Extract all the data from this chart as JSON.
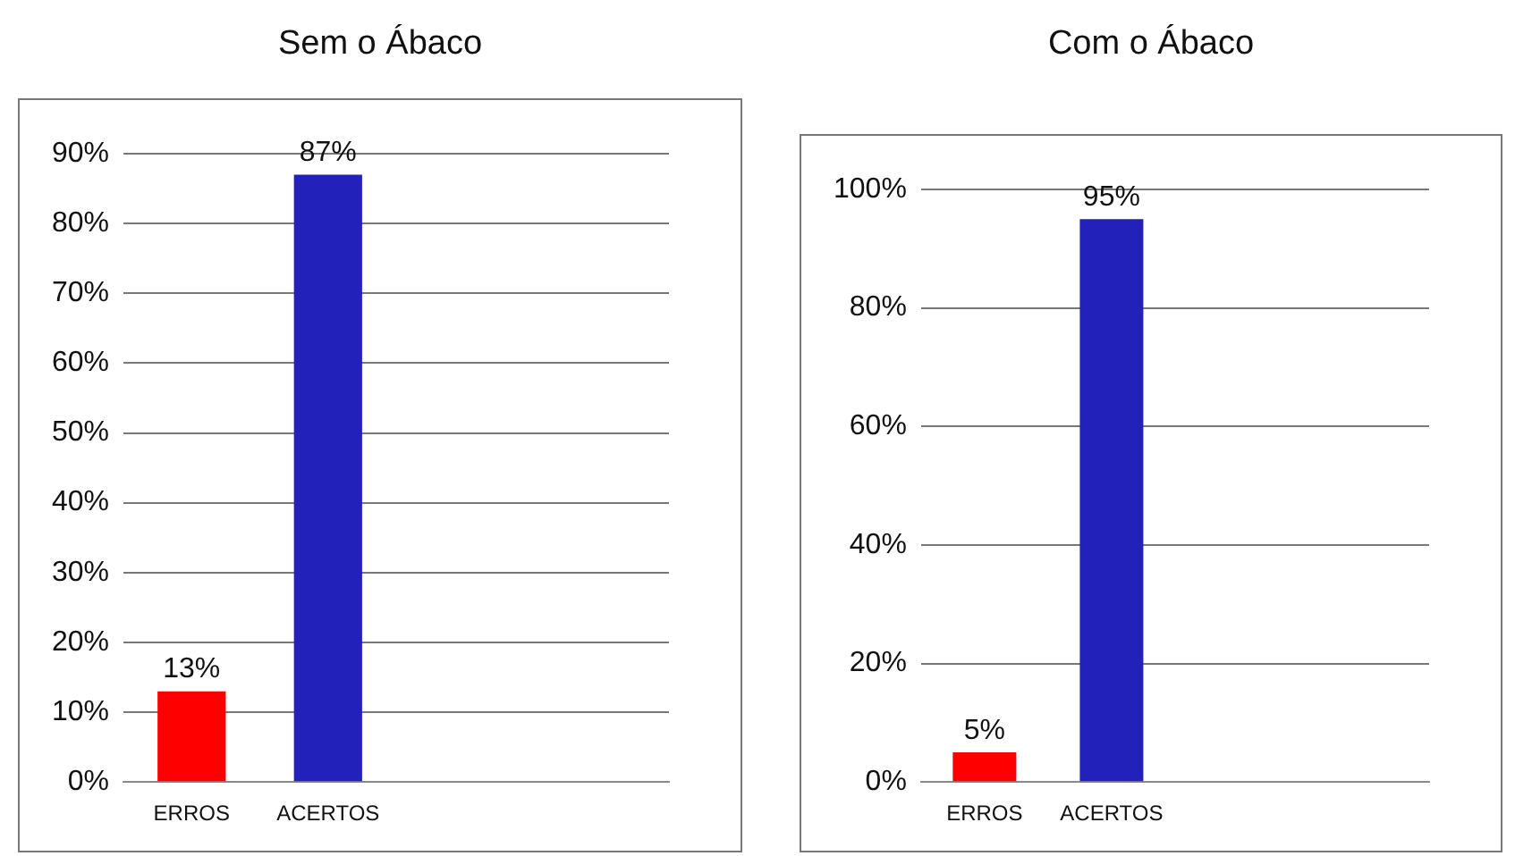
{
  "chart_data": [
    {
      "type": "bar",
      "title": "Sem o Ábaco",
      "categories": [
        "ERROS",
        "ACERTOS",
        null,
        null
      ],
      "values": [
        13,
        87,
        null,
        null
      ],
      "colors": [
        "#ff0000",
        "#2222bb",
        null,
        null
      ],
      "value_labels": [
        "13%",
        "87%",
        null,
        null
      ],
      "ylim": [
        0,
        90
      ],
      "yticks": [
        {
          "value": 0,
          "label": "0%"
        },
        {
          "value": 10,
          "label": "10%"
        },
        {
          "value": 20,
          "label": "20%"
        },
        {
          "value": 30,
          "label": "30%"
        },
        {
          "value": 40,
          "label": "40%"
        },
        {
          "value": 50,
          "label": "50%"
        },
        {
          "value": 60,
          "label": "60%"
        },
        {
          "value": 70,
          "label": "70%"
        },
        {
          "value": 80,
          "label": "80%"
        },
        {
          "value": 90,
          "label": "90%"
        }
      ],
      "grid": "y"
    },
    {
      "type": "bar",
      "title": "Com o Ábaco",
      "categories": [
        "ERROS",
        "ACERTOS",
        null,
        null
      ],
      "values": [
        5,
        95,
        null,
        null
      ],
      "colors": [
        "#ff0000",
        "#2222bb",
        null,
        null
      ],
      "value_labels": [
        "5%",
        "95%",
        null,
        null
      ],
      "ylim": [
        0,
        100
      ],
      "yticks": [
        {
          "value": 0,
          "label": "0%"
        },
        {
          "value": 20,
          "label": "20%"
        },
        {
          "value": 40,
          "label": "40%"
        },
        {
          "value": 60,
          "label": "60%"
        },
        {
          "value": 80,
          "label": "80%"
        },
        {
          "value": 100,
          "label": "100%"
        }
      ],
      "grid": "y"
    }
  ]
}
